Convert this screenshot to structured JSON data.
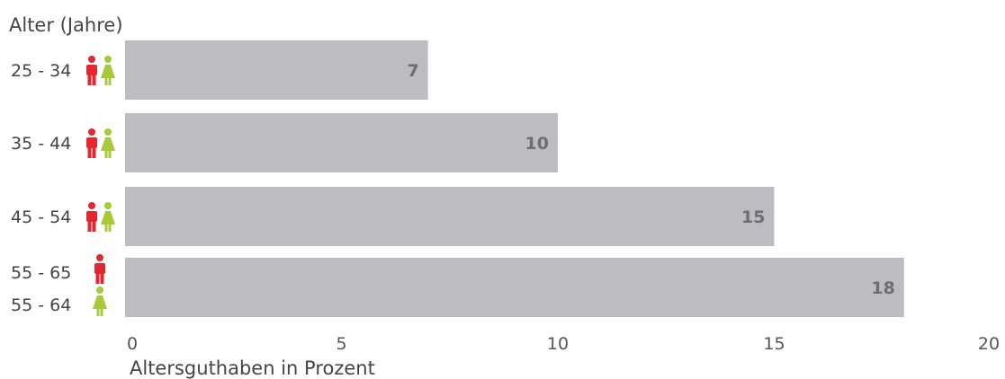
{
  "chart_data": {
    "type": "bar",
    "orientation": "horizontal",
    "ylabel": "Alter (Jahre)",
    "xlabel": "Altersguthaben in Prozent",
    "xlim": [
      0,
      20
    ],
    "xticks": [
      0,
      5,
      10,
      15,
      20
    ],
    "grid": false,
    "categories": [
      {
        "labels": [
          "25 - 34"
        ],
        "icons": [
          "man-icon",
          "woman-icon"
        ]
      },
      {
        "labels": [
          "35 - 44"
        ],
        "icons": [
          "man-icon",
          "woman-icon"
        ]
      },
      {
        "labels": [
          "45 - 54"
        ],
        "icons": [
          "man-icon",
          "woman-icon"
        ]
      },
      {
        "labels": [
          "55 - 65",
          "55 - 64"
        ],
        "icons": [
          "man-icon",
          "woman-icon"
        ]
      }
    ],
    "values": [
      7,
      10,
      15,
      18
    ],
    "colors": {
      "bar": "#bcbdc0",
      "value_label": "#6d6e71",
      "man": "#e3262f",
      "woman": "#a8c93a",
      "text": "#444444",
      "tick": "#555555"
    }
  }
}
